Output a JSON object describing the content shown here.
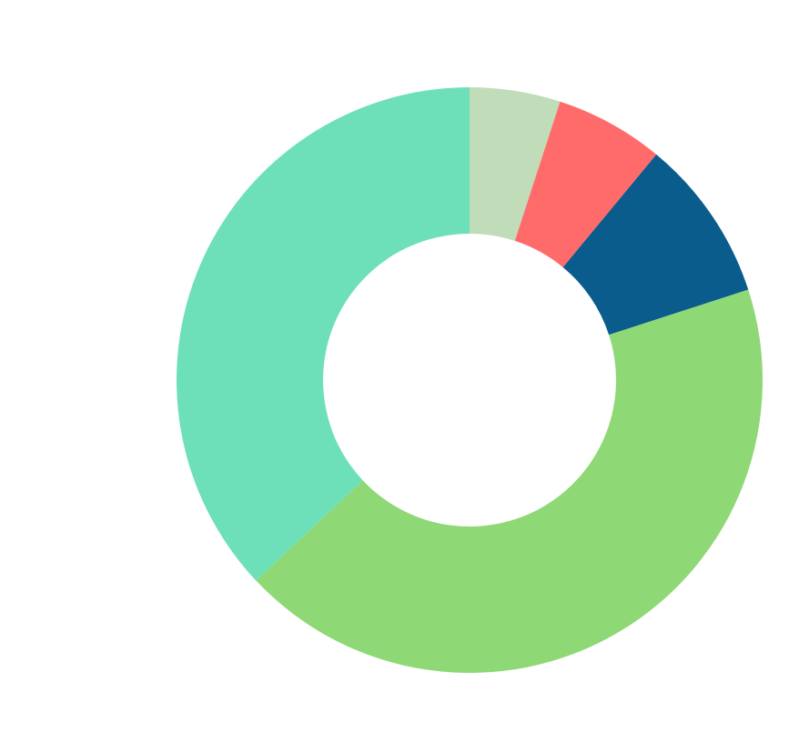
{
  "chart_data": {
    "type": "donut",
    "values": [
      5,
      6,
      9,
      43,
      37
    ],
    "colors": [
      "#c0dcb9",
      "#ff6b6b",
      "#0a5c8c",
      "#8ed876",
      "#6ee0b9"
    ]
  }
}
